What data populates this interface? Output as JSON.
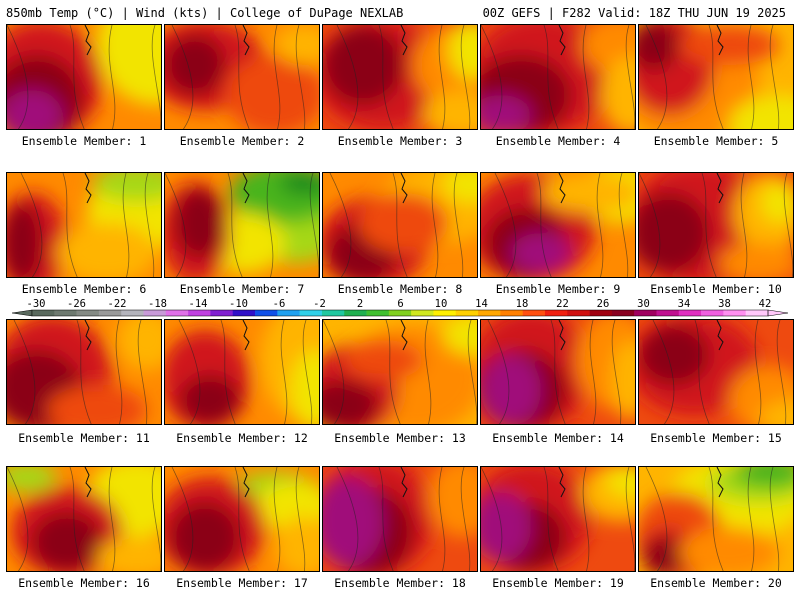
{
  "header": {
    "left": "850mb Temp (°C) | Wind (kts) | College of DuPage NEXLAB",
    "right": "00Z GEFS | F282 Valid: 18Z THU JUN 19 2025"
  },
  "panels": [
    {
      "label": "Ensemble Member: 1"
    },
    {
      "label": "Ensemble Member: 2"
    },
    {
      "label": "Ensemble Member: 3"
    },
    {
      "label": "Ensemble Member: 4"
    },
    {
      "label": "Ensemble Member: 5"
    },
    {
      "label": "Ensemble Member: 6"
    },
    {
      "label": "Ensemble Member: 7"
    },
    {
      "label": "Ensemble Member: 8"
    },
    {
      "label": "Ensemble Member: 9"
    },
    {
      "label": "Ensemble Member: 10"
    },
    {
      "label": "Ensemble Member: 11"
    },
    {
      "label": "Ensemble Member: 12"
    },
    {
      "label": "Ensemble Member: 13"
    },
    {
      "label": "Ensemble Member: 14"
    },
    {
      "label": "Ensemble Member: 15"
    },
    {
      "label": "Ensemble Member: 16"
    },
    {
      "label": "Ensemble Member: 17"
    },
    {
      "label": "Ensemble Member: 18"
    },
    {
      "label": "Ensemble Member: 19"
    },
    {
      "label": "Ensemble Member: 20"
    }
  ],
  "colorbar": {
    "ticks": [
      "-30",
      "-26",
      "-22",
      "-18",
      "-14",
      "-10",
      "-6",
      "-2",
      "2",
      "6",
      "10",
      "14",
      "18",
      "22",
      "26",
      "30",
      "34",
      "38",
      "42"
    ],
    "colors": [
      "#5a6a5e",
      "#6e7a70",
      "#848a84",
      "#9a9a9a",
      "#b4b4bc",
      "#c89ad8",
      "#e070e8",
      "#c040e0",
      "#8020d0",
      "#3010c8",
      "#1050e8",
      "#20a0f0",
      "#30d0e8",
      "#20c8a0",
      "#20b050",
      "#40c030",
      "#80d020",
      "#d0e820",
      "#fff000",
      "#ffd000",
      "#ffa800",
      "#ff8000",
      "#ff5010",
      "#f02010",
      "#d01010",
      "#a00010",
      "#880020",
      "#a00060",
      "#c01090",
      "#e030c0",
      "#f060e0",
      "#ff90f0",
      "#ffc8fa"
    ]
  },
  "palette": {
    "magenta": "#a0107a",
    "darkred": "#8b0018",
    "red": "#d0181a",
    "orangered": "#ee4a10",
    "orange": "#ff8a00",
    "amber": "#ffb400",
    "yellow": "#f2e400",
    "lime": "#a6d818",
    "green": "#48b41c",
    "darkgreen": "#1e8a1c"
  }
}
